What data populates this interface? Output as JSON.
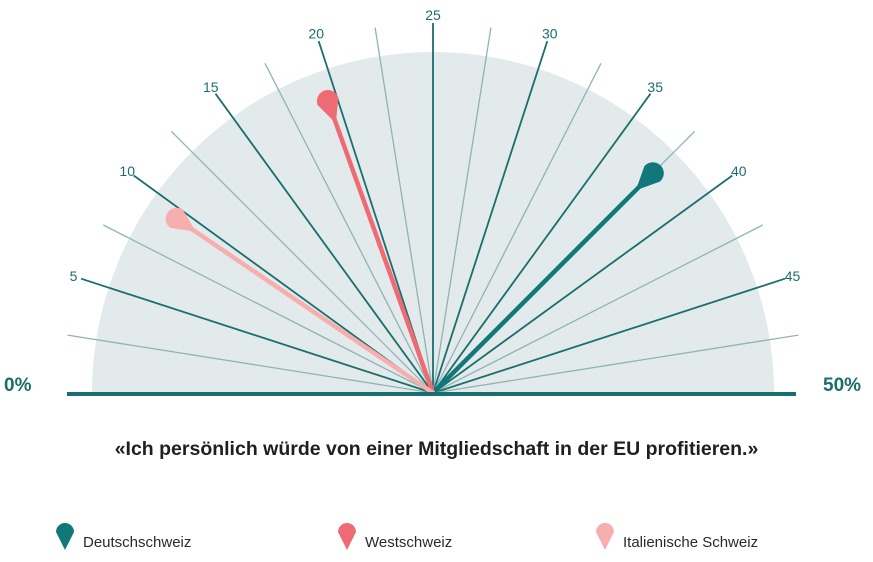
{
  "chart_data": {
    "type": "gauge",
    "axis": {
      "min": 0,
      "max": 50,
      "min_label": "0%",
      "max_label": "50%",
      "tick_values": [
        5,
        10,
        15,
        20,
        25,
        30,
        35,
        40,
        45
      ],
      "tick_labels": [
        "5",
        "10",
        "15",
        "20",
        "25",
        "30",
        "35",
        "40",
        "45"
      ]
    },
    "title": "«Ich persönlich würde von einer Mitgliedschaft in der EU profitieren.»",
    "series": [
      {
        "name": "Deutschschweiz",
        "value": 37.5,
        "color": "#11787a"
      },
      {
        "name": "Westschweiz",
        "value": 19.5,
        "color": "#ef6b73"
      },
      {
        "name": "Italienische Schweiz",
        "value": 9.5,
        "color": "#f6aeae"
      }
    ],
    "legend_position": "bottom"
  },
  "colors": {
    "dial_background": "#e3eaeb",
    "major_ray": "#1b6e6e",
    "minor_ray": "#8fb4b4",
    "baseline": "#1b6e6e"
  }
}
